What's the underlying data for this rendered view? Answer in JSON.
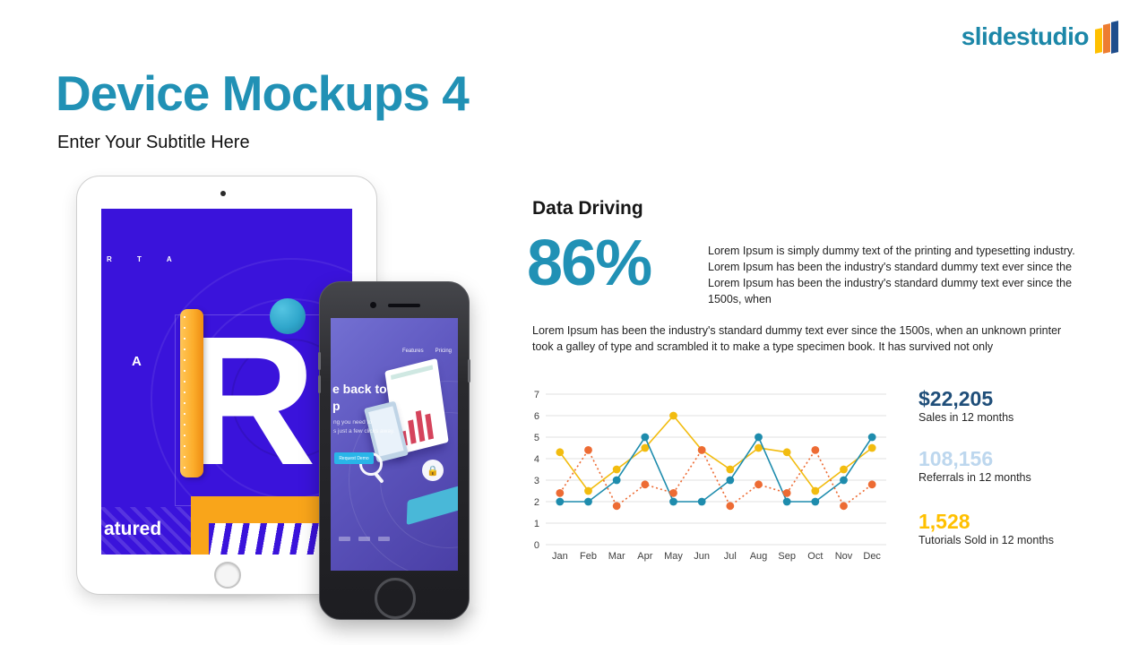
{
  "logo": {
    "text": "slidestudio",
    "icon": "three-slanted-bars",
    "text_color": "#1c87a8",
    "bar_colors": [
      "#ffc000",
      "#ed7d31",
      "#1f4e8c"
    ]
  },
  "header": {
    "title": "Device Mockups 4",
    "subtitle": "Enter Your Subtitle Here",
    "title_color": "#2191b5"
  },
  "content": {
    "section_title": "Data Driving",
    "stat_value": "86%",
    "stat_color": "#2191b5",
    "paragraph1": "Lorem Ipsum is simply dummy text of the printing and typesetting industry. Lorem Ipsum has been the industry's standard dummy text ever since the Lorem Ipsum has been the industry's standard dummy text ever since the 1500s, when",
    "paragraph2": "Lorem Ipsum has been the industry's standard dummy text ever since the 1500s, when an unknown printer took a galley of type and scrambled it to make a type specimen book. It has survived not only"
  },
  "chart_data": {
    "type": "line",
    "title": "",
    "xlabel": "",
    "ylabel": "",
    "categories": [
      "Jan",
      "Feb",
      "Mar",
      "Apr",
      "May",
      "Jun",
      "Jul",
      "Aug",
      "Sep",
      "Oct",
      "Nov",
      "Dec"
    ],
    "series": [
      {
        "name": "Sales",
        "color": "#1e8cad",
        "line_style": "solid",
        "values": [
          2,
          2,
          3,
          5,
          2,
          2,
          3,
          5,
          2,
          2,
          3,
          5
        ]
      },
      {
        "name": "Referrals",
        "color": "#ed6b33",
        "line_style": "dotted",
        "values": [
          2.4,
          4.4,
          1.8,
          2.8,
          2.4,
          4.4,
          1.8,
          2.8,
          2.4,
          4.4,
          1.8,
          2.8
        ]
      },
      {
        "name": "Tutorials Sold",
        "color": "#f2bc0f",
        "line_style": "solid",
        "values": [
          4.3,
          2.5,
          3.5,
          4.5,
          6,
          4.4,
          3.5,
          4.5,
          4.3,
          2.5,
          3.5,
          4.5
        ]
      }
    ],
    "ylim": [
      0,
      7
    ],
    "yticks": [
      0,
      1,
      2,
      3,
      4,
      5,
      6,
      7
    ],
    "grid": true,
    "legend": "none",
    "marker": "circle"
  },
  "kpis": [
    {
      "value": "$22,205",
      "label": "Sales in 12 months",
      "color": "#1f4e79"
    },
    {
      "value": "108,156",
      "label": "Referrals in 12 months",
      "color": "#bdd7ee"
    },
    {
      "value": "1,528",
      "label": "Tutorials Sold in 12 months",
      "color": "#ffc000"
    }
  ],
  "mockups": {
    "tablet": {
      "screen_code": "R T A",
      "letter_a": "A",
      "big_letter": "R",
      "footer_word": "atured"
    },
    "phone": {
      "nav": [
        "Features",
        "Pricing"
      ],
      "heading_line1": "e back to",
      "heading_line2": "p",
      "body_line1": "ng you need to",
      "body_line2": "s just a few clicks away.",
      "button_label": "Request Demo",
      "lock_glyph": "🔒"
    }
  }
}
